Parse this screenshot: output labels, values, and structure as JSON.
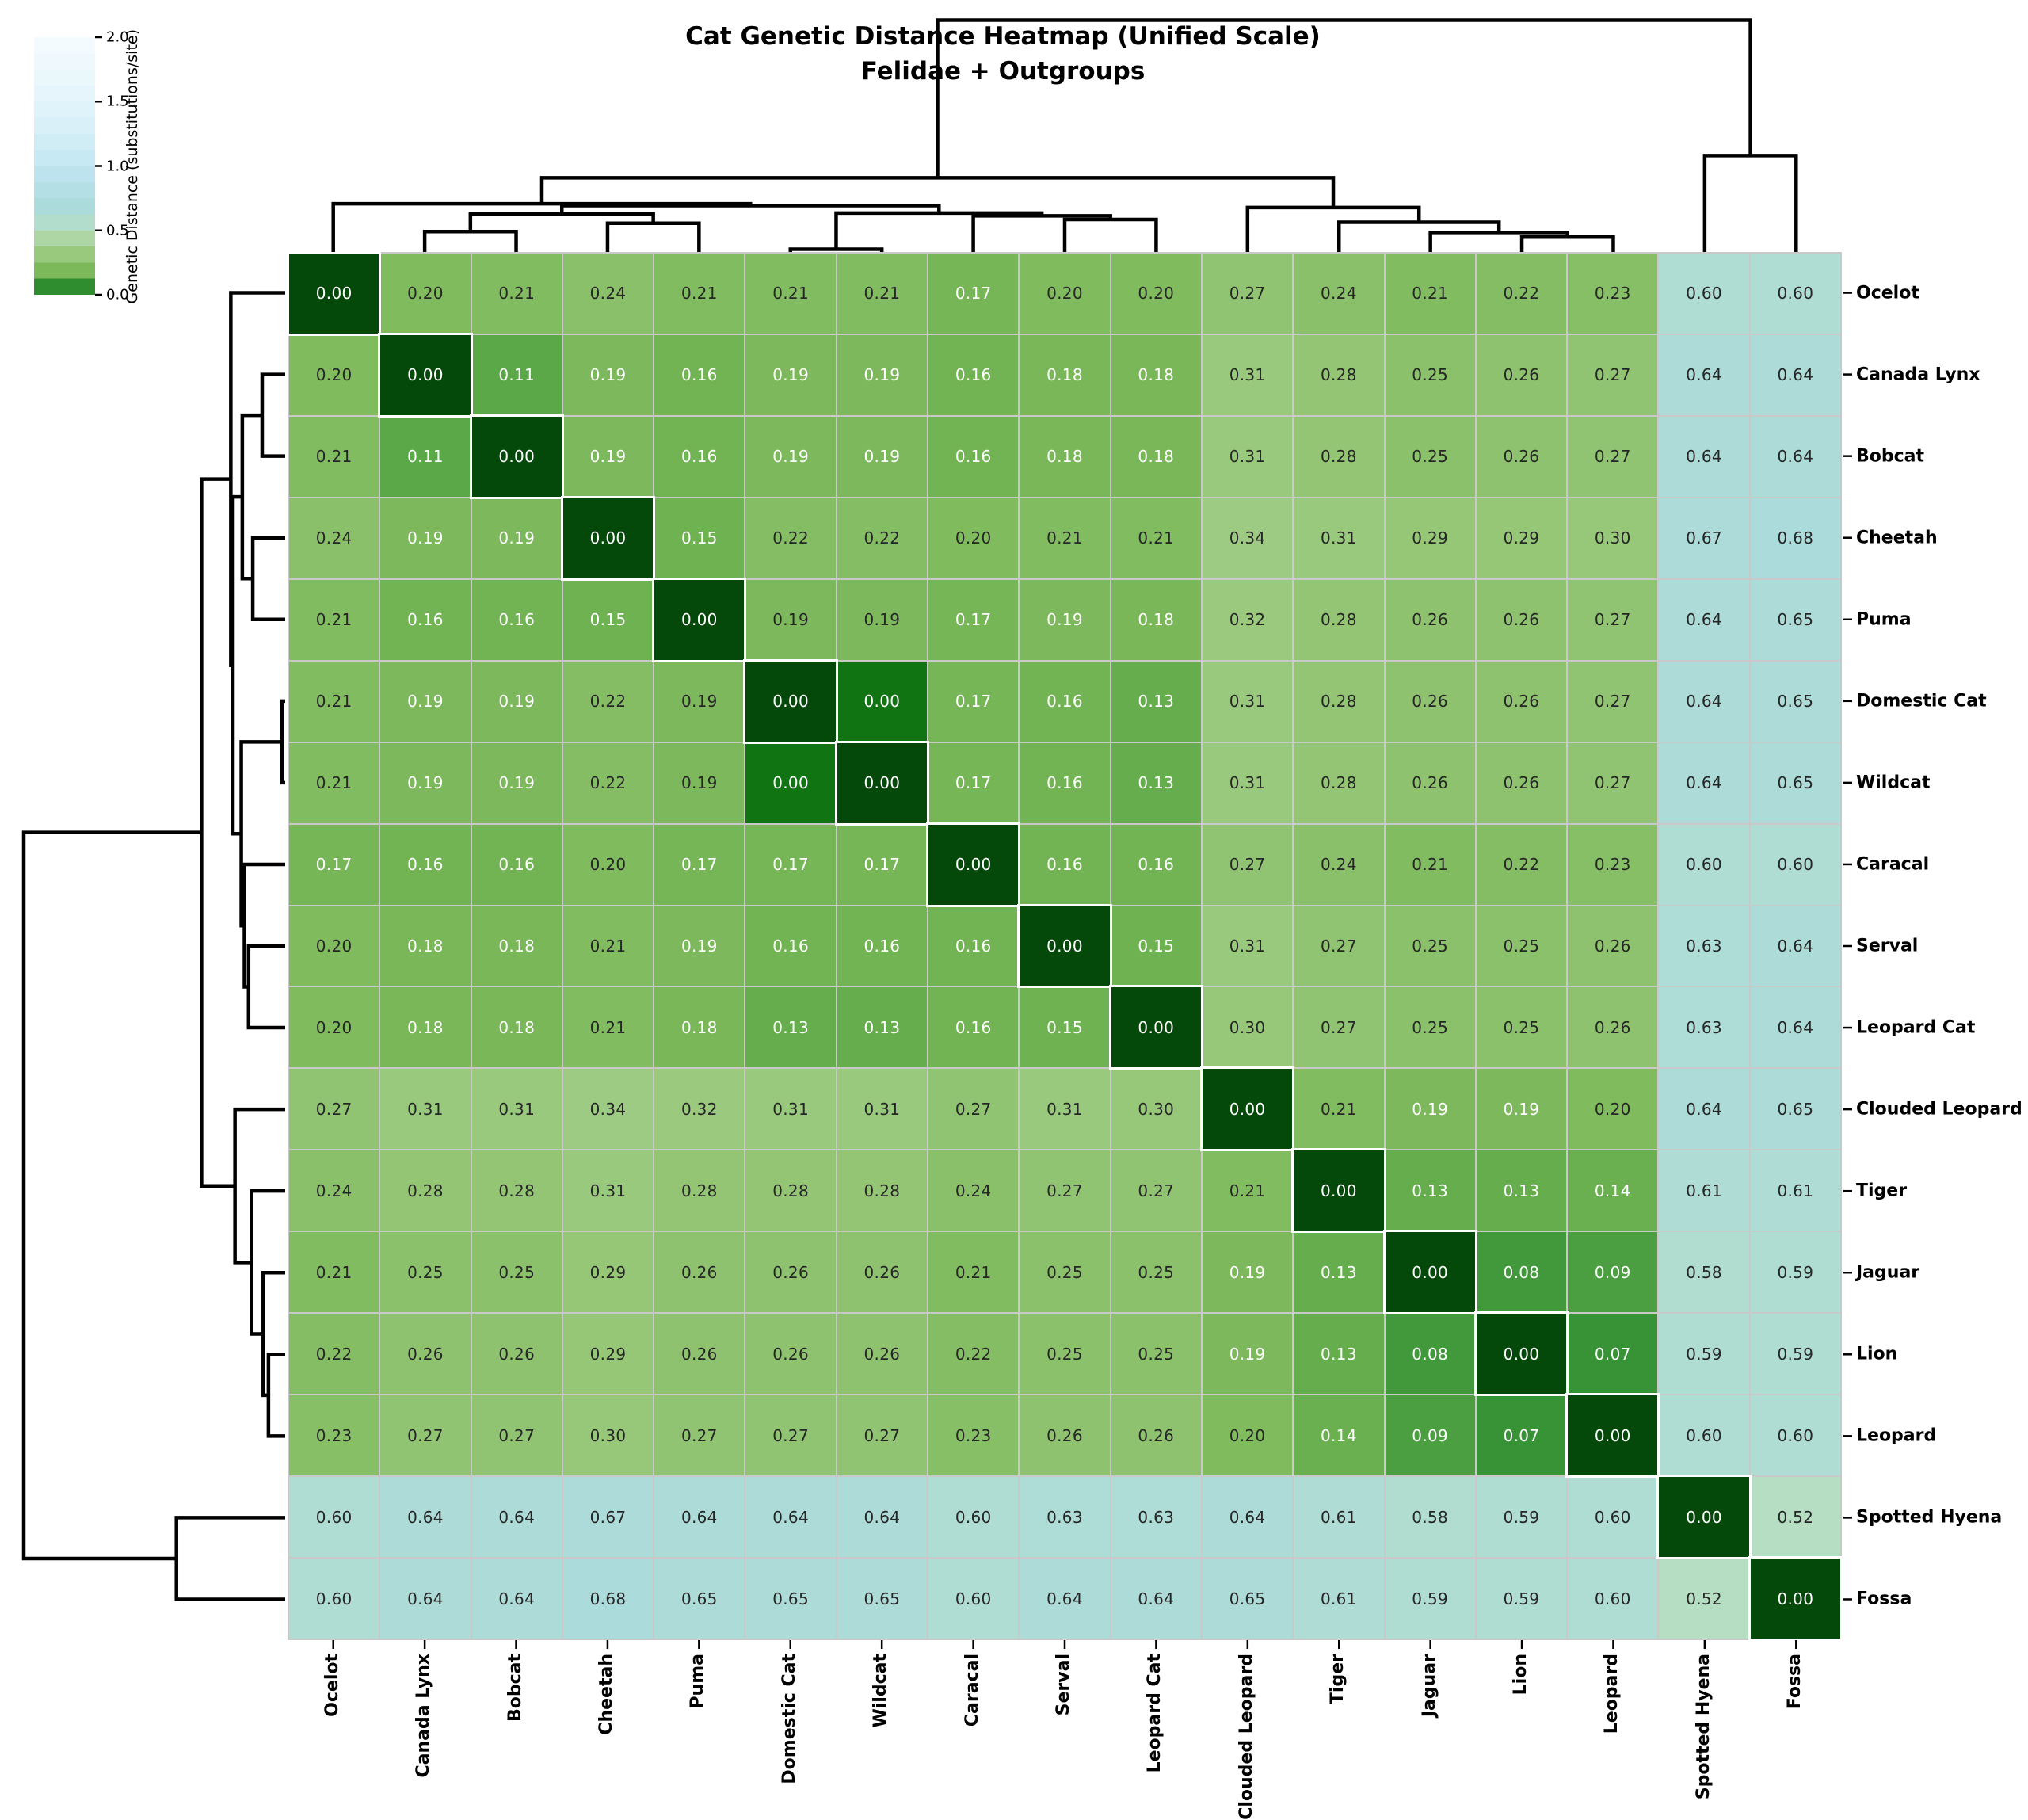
{
  "title": {
    "line1": "Cat Genetic Distance Heatmap (Unified Scale)",
    "line2": "Felidae + Outgroups"
  },
  "colorbar": {
    "label": "Genetic Distance (substitutions/site)",
    "ticks": [
      {
        "label": "0.0",
        "value": 0.0
      },
      {
        "label": "0.5",
        "value": 0.5
      },
      {
        "label": "1.0",
        "value": 1.0
      },
      {
        "label": "1.5",
        "value": 1.5
      },
      {
        "label": "2.0",
        "value": 2.0
      }
    ],
    "min": 0.0,
    "max": 2.0,
    "bands": 16
  },
  "species": [
    "Ocelot",
    "Canada Lynx",
    "Bobcat",
    "Cheetah",
    "Puma",
    "Domestic Cat",
    "Wildcat",
    "Caracal",
    "Serval",
    "Leopard Cat",
    "Clouded Leopard",
    "Tiger",
    "Jaguar",
    "Lion",
    "Leopard",
    "Spotted Hyena",
    "Fossa"
  ],
  "annotations": {
    "format_decimals": 2,
    "white_text_color": "#ffffff",
    "dark_text_color": "#262626",
    "white_text_threshold": 0.195,
    "dark_text_exceptions": [
      [
        4,
        5
      ],
      [
        5,
        4
      ],
      [
        4,
        6
      ],
      [
        6,
        4
      ]
    ]
  },
  "style_colors": {
    "grid_line": "#c9c9c9",
    "diagonal_outline": "#ffffff",
    "dendrogram_line": "#000000",
    "zero_offdiagonal_sample_value": 0.03
  },
  "chart_data": {
    "type": "heatmap",
    "title": "Cat Genetic Distance Heatmap (Unified Scale) — Felidae + Outgroups",
    "legend_label": "Genetic Distance (substitutions/site)",
    "colorbar_range": [
      0.0,
      2.0
    ],
    "rows": [
      "Ocelot",
      "Canada Lynx",
      "Bobcat",
      "Cheetah",
      "Puma",
      "Domestic Cat",
      "Wildcat",
      "Caracal",
      "Serval",
      "Leopard Cat",
      "Clouded Leopard",
      "Tiger",
      "Jaguar",
      "Lion",
      "Leopard",
      "Spotted Hyena",
      "Fossa"
    ],
    "columns": [
      "Ocelot",
      "Canada Lynx",
      "Bobcat",
      "Cheetah",
      "Puma",
      "Domestic Cat",
      "Wildcat",
      "Caracal",
      "Serval",
      "Leopard Cat",
      "Clouded Leopard",
      "Tiger",
      "Jaguar",
      "Lion",
      "Leopard",
      "Spotted Hyena",
      "Fossa"
    ],
    "values": [
      [
        0.0,
        0.2,
        0.21,
        0.24,
        0.21,
        0.21,
        0.21,
        0.17,
        0.2,
        0.2,
        0.27,
        0.24,
        0.21,
        0.22,
        0.23,
        0.6,
        0.6
      ],
      [
        0.2,
        0.0,
        0.11,
        0.19,
        0.16,
        0.19,
        0.19,
        0.16,
        0.18,
        0.18,
        0.31,
        0.28,
        0.25,
        0.26,
        0.27,
        0.64,
        0.64
      ],
      [
        0.21,
        0.11,
        0.0,
        0.19,
        0.16,
        0.19,
        0.19,
        0.16,
        0.18,
        0.18,
        0.31,
        0.28,
        0.25,
        0.26,
        0.27,
        0.64,
        0.64
      ],
      [
        0.24,
        0.19,
        0.19,
        0.0,
        0.15,
        0.22,
        0.22,
        0.2,
        0.21,
        0.21,
        0.34,
        0.31,
        0.29,
        0.29,
        0.3,
        0.67,
        0.68
      ],
      [
        0.21,
        0.16,
        0.16,
        0.15,
        0.0,
        0.19,
        0.19,
        0.17,
        0.19,
        0.18,
        0.32,
        0.28,
        0.26,
        0.26,
        0.27,
        0.64,
        0.65
      ],
      [
        0.21,
        0.19,
        0.19,
        0.22,
        0.19,
        0.0,
        0.0,
        0.17,
        0.16,
        0.13,
        0.31,
        0.28,
        0.26,
        0.26,
        0.27,
        0.64,
        0.65
      ],
      [
        0.21,
        0.19,
        0.19,
        0.22,
        0.19,
        0.0,
        0.0,
        0.17,
        0.16,
        0.13,
        0.31,
        0.28,
        0.26,
        0.26,
        0.27,
        0.64,
        0.65
      ],
      [
        0.17,
        0.16,
        0.16,
        0.2,
        0.17,
        0.17,
        0.17,
        0.0,
        0.16,
        0.16,
        0.27,
        0.24,
        0.21,
        0.22,
        0.23,
        0.6,
        0.6
      ],
      [
        0.2,
        0.18,
        0.18,
        0.21,
        0.19,
        0.16,
        0.16,
        0.16,
        0.0,
        0.15,
        0.31,
        0.27,
        0.25,
        0.25,
        0.26,
        0.63,
        0.64
      ],
      [
        0.2,
        0.18,
        0.18,
        0.21,
        0.18,
        0.13,
        0.13,
        0.16,
        0.15,
        0.0,
        0.3,
        0.27,
        0.25,
        0.25,
        0.26,
        0.63,
        0.64
      ],
      [
        0.27,
        0.31,
        0.31,
        0.34,
        0.32,
        0.31,
        0.31,
        0.27,
        0.31,
        0.3,
        0.0,
        0.21,
        0.19,
        0.19,
        0.2,
        0.64,
        0.65
      ],
      [
        0.24,
        0.28,
        0.28,
        0.31,
        0.28,
        0.28,
        0.28,
        0.24,
        0.27,
        0.27,
        0.21,
        0.0,
        0.13,
        0.13,
        0.14,
        0.61,
        0.61
      ],
      [
        0.21,
        0.25,
        0.25,
        0.29,
        0.26,
        0.26,
        0.26,
        0.21,
        0.25,
        0.25,
        0.19,
        0.13,
        0.0,
        0.08,
        0.09,
        0.58,
        0.59
      ],
      [
        0.22,
        0.26,
        0.26,
        0.29,
        0.26,
        0.26,
        0.26,
        0.22,
        0.25,
        0.25,
        0.19,
        0.13,
        0.08,
        0.0,
        0.07,
        0.59,
        0.59
      ],
      [
        0.23,
        0.27,
        0.27,
        0.3,
        0.27,
        0.27,
        0.27,
        0.23,
        0.26,
        0.26,
        0.2,
        0.14,
        0.09,
        0.07,
        0.0,
        0.6,
        0.6
      ],
      [
        0.6,
        0.64,
        0.64,
        0.67,
        0.64,
        0.64,
        0.64,
        0.6,
        0.63,
        0.63,
        0.64,
        0.61,
        0.58,
        0.59,
        0.6,
        0.0,
        0.52
      ],
      [
        0.6,
        0.64,
        0.64,
        0.68,
        0.65,
        0.65,
        0.65,
        0.6,
        0.64,
        0.64,
        0.65,
        0.61,
        0.59,
        0.59,
        0.6,
        0.52,
        0.0
      ]
    ],
    "colormap_stops": [
      [
        0.0,
        "#05490a"
      ],
      [
        0.03,
        "#107413"
      ],
      [
        0.07,
        "#389336"
      ],
      [
        0.1,
        "#55a546"
      ],
      [
        0.15,
        "#6fb252"
      ],
      [
        0.2,
        "#80bb5e"
      ],
      [
        0.25,
        "#8cc16c"
      ],
      [
        0.3,
        "#97c87a"
      ],
      [
        0.36,
        "#a2cd89"
      ],
      [
        0.44,
        "#aed6a6"
      ],
      [
        0.5,
        "#b6debe"
      ],
      [
        0.56,
        "#b2ddcd"
      ],
      [
        0.62,
        "#aedcd6"
      ],
      [
        0.7,
        "#abdbdc"
      ],
      [
        0.85,
        "#b5e0e8"
      ],
      [
        1.0,
        "#c2e7f2"
      ],
      [
        1.3,
        "#d9f0f9"
      ],
      [
        1.65,
        "#e9f7fc"
      ],
      [
        2.0,
        "#f5fcfe"
      ]
    ],
    "dendrogram": {
      "note": "merges reference leaf indices 0-16 (species order) then node ids 17+; h = merge height in distance units on the drawn scale",
      "merges": [
        {
          "id": 17,
          "a": 5,
          "b": 6,
          "h": 0.015
        },
        {
          "id": 18,
          "a": 13,
          "b": 14,
          "h": 0.08
        },
        {
          "id": 19,
          "a": 12,
          "b": 18,
          "h": 0.105
        },
        {
          "id": 20,
          "a": 1,
          "b": 2,
          "h": 0.11
        },
        {
          "id": 21,
          "a": 3,
          "b": 4,
          "h": 0.155
        },
        {
          "id": 22,
          "a": 8,
          "b": 9,
          "h": 0.175
        },
        {
          "id": 23,
          "a": 7,
          "b": 22,
          "h": 0.195
        },
        {
          "id": 24,
          "a": 20,
          "b": 21,
          "h": 0.205
        },
        {
          "id": 25,
          "a": 17,
          "b": 23,
          "h": 0.21
        },
        {
          "id": 26,
          "a": 11,
          "b": 19,
          "h": 0.16
        },
        {
          "id": 27,
          "a": 10,
          "b": 26,
          "h": 0.24
        },
        {
          "id": 28,
          "a": 24,
          "b": 25,
          "h": 0.25
        },
        {
          "id": 29,
          "a": 0,
          "b": 28,
          "h": 0.26
        },
        {
          "id": 30,
          "a": 29,
          "b": 27,
          "h": 0.4
        },
        {
          "id": 31,
          "a": 15,
          "b": 16,
          "h": 0.52
        },
        {
          "id": 32,
          "a": 30,
          "b": 31,
          "h": 1.25
        }
      ]
    }
  }
}
